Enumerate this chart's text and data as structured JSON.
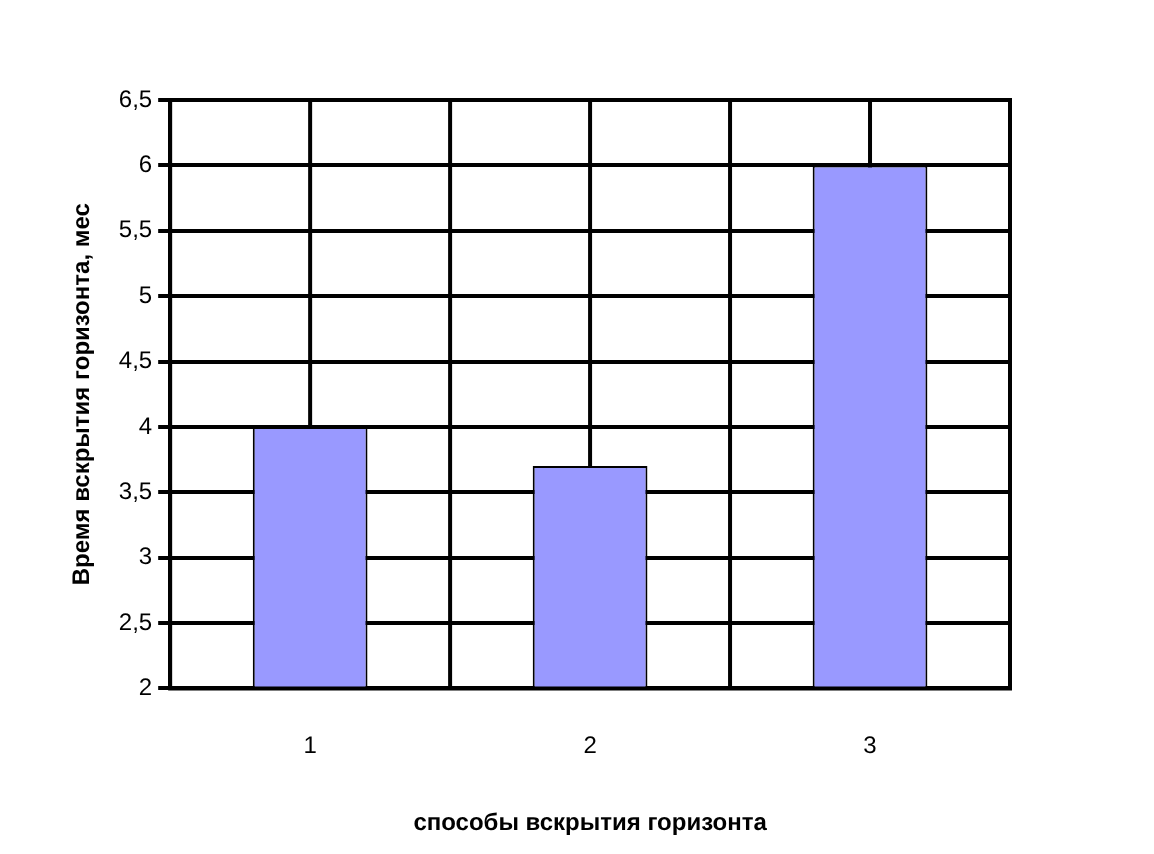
{
  "chart_data": {
    "type": "bar",
    "categories": [
      "1",
      "2",
      "3"
    ],
    "values": [
      4,
      3.7,
      6
    ],
    "color": "#9999ff",
    "xlabel": "способы вскрытия горизонта",
    "ylabel": "Время вскрытия горизонта, мес",
    "ylim": [
      2,
      6.5
    ],
    "yticks": [
      2,
      {
        "value": 2.5,
        "label": "2,5"
      },
      3,
      {
        "value": 3.5,
        "label": "3,5"
      },
      4,
      {
        "value": 4.5,
        "label": "4,5"
      },
      5,
      {
        "value": 5.5,
        "label": "5,5"
      },
      6,
      {
        "value": 6.5,
        "label": "6,5"
      }
    ],
    "grid": true
  }
}
